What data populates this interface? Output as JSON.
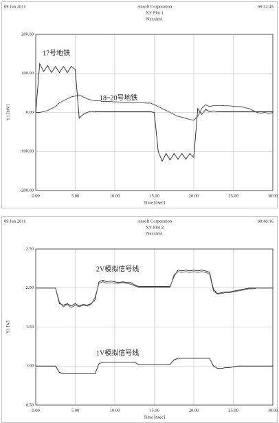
{
  "chart_data": [
    {
      "type": "line",
      "date": "09 Jun 2011",
      "company": "Ansoft Corporation",
      "title": "XY Plot 1",
      "subtitle": "Nexxim1",
      "time": "09:32:45",
      "xlabel": "Time [nsec]",
      "ylabel": "Y1 [mV]",
      "annotations": [
        "17号地铁",
        "18~20号地铁"
      ],
      "xlim": [
        0,
        30
      ],
      "xticks": [
        {
          "value": 0,
          "label": "0.00"
        },
        {
          "value": 5,
          "label": "5.00"
        },
        {
          "value": 10,
          "label": "10.00"
        },
        {
          "value": 15,
          "label": "15.00"
        },
        {
          "value": 20,
          "label": "20.00"
        },
        {
          "value": 25,
          "label": "25.00"
        },
        {
          "value": 30,
          "label": "30.00"
        }
      ],
      "ylim": [
        -200,
        200
      ],
      "yticks": [
        {
          "value": -200,
          "label": "-200.00"
        },
        {
          "value": -100,
          "label": "-100.00"
        },
        {
          "value": 0,
          "label": "0.00"
        },
        {
          "value": 100,
          "label": "100.00"
        },
        {
          "value": 200,
          "label": "200.00"
        }
      ],
      "grid": true,
      "x": [
        0,
        0.5,
        1,
        1.5,
        2,
        2.5,
        3,
        3.5,
        4,
        4.5,
        5,
        5.5,
        6,
        6.5,
        7,
        7.5,
        8,
        8.5,
        9,
        9.5,
        10,
        10.5,
        11,
        11.5,
        12,
        12.5,
        13,
        13.5,
        14,
        14.5,
        15,
        15.5,
        16,
        16.5,
        17,
        17.5,
        18,
        18.5,
        19,
        19.5,
        20,
        20.5,
        21,
        21.5,
        22,
        22.5,
        23,
        23.5,
        24,
        24.5,
        25,
        25.5,
        26,
        26.5,
        27,
        27.5,
        28,
        28.5,
        29,
        29.5,
        30
      ],
      "series": [
        {
          "color": "#222222",
          "values": [
            0,
            125,
            105,
            120,
            102,
            118,
            102,
            118,
            102,
            118,
            110,
            -15,
            -5,
            0,
            3,
            2,
            2,
            2,
            2,
            2,
            2,
            2,
            2,
            2,
            2,
            2,
            2,
            2,
            2,
            2,
            0,
            -100,
            -125,
            -105,
            -122,
            -105,
            -120,
            -105,
            -120,
            -105,
            -115,
            10,
            -5,
            8,
            2,
            4,
            2,
            2,
            2,
            2,
            2,
            2,
            2,
            2,
            2,
            2,
            2,
            2,
            2,
            2,
            2
          ]
        },
        {
          "color": "#444444",
          "values": [
            0,
            0,
            2,
            5,
            10,
            15,
            25,
            30,
            35,
            40,
            42,
            45,
            40,
            35,
            32,
            30,
            30,
            28,
            28,
            28,
            27,
            27,
            26,
            26,
            25,
            25,
            25,
            25,
            24,
            24,
            20,
            15,
            10,
            5,
            0,
            -5,
            -10,
            -12,
            -15,
            -18,
            -20,
            -10,
            10,
            20,
            15,
            18,
            18,
            18,
            17,
            17,
            16,
            15,
            15,
            12,
            10,
            5,
            0,
            -2,
            0,
            -3,
            0
          ]
        }
      ]
    },
    {
      "type": "line",
      "date": "09 Jun 2011",
      "company": "Ansoft Corporation",
      "title": "XY Plot 2",
      "subtitle": "Nexxim1",
      "time": "09:40:16",
      "xlabel": "Time [nsec]",
      "ylabel": "Y1 [V]",
      "annotations": [
        "2V模拟信号线",
        "1V模拟信号线"
      ],
      "xlim": [
        0,
        30
      ],
      "xticks": [
        {
          "value": 0,
          "label": "0.00"
        },
        {
          "value": 5,
          "label": "5.00"
        },
        {
          "value": 10,
          "label": "10.00"
        },
        {
          "value": 15,
          "label": "15.00"
        },
        {
          "value": 20,
          "label": "20.00"
        },
        {
          "value": 25,
          "label": "25.00"
        },
        {
          "value": 30,
          "label": "30.00"
        }
      ],
      "ylim": [
        0.5,
        2.5
      ],
      "yticks": [
        {
          "value": 0.5,
          "label": "0.50"
        },
        {
          "value": 1,
          "label": "1.00"
        },
        {
          "value": 1.5,
          "label": "1.50"
        },
        {
          "value": 2,
          "label": "2.00"
        },
        {
          "value": 2.5,
          "label": "2.50"
        }
      ],
      "grid": true,
      "x": [
        0,
        0.5,
        1,
        1.5,
        2,
        2.5,
        3,
        3.5,
        4,
        4.5,
        5,
        5.5,
        6,
        6.5,
        7,
        7.5,
        8,
        8.5,
        9,
        9.5,
        10,
        10.5,
        11,
        11.5,
        12,
        12.5,
        13,
        13.5,
        14,
        14.5,
        15,
        15.5,
        16,
        16.5,
        17,
        17.5,
        18,
        18.5,
        19,
        19.5,
        20,
        20.5,
        21,
        21.5,
        22,
        22.5,
        23,
        23.5,
        24,
        24.5,
        25,
        25.5,
        26,
        26.5,
        27,
        27.5,
        28,
        28.5,
        29,
        29.5,
        30
      ],
      "series": [
        {
          "color": "#222222",
          "values": [
            2,
            2,
            2,
            2,
            2,
            2,
            1.8,
            1.78,
            1.8,
            1.77,
            1.8,
            1.77,
            1.79,
            1.78,
            1.8,
            1.85,
            2.08,
            2.1,
            2.08,
            2.09,
            2.08,
            2.07,
            2.08,
            2.07,
            2.07,
            2.04,
            2.02,
            2.02,
            2.02,
            2.02,
            2.02,
            2.02,
            2.02,
            2.02,
            2.02,
            2.15,
            2.23,
            2.22,
            2.23,
            2.22,
            2.23,
            2.22,
            2.23,
            2.22,
            2.2,
            1.98,
            1.93,
            1.94,
            1.95,
            1.95,
            1.96,
            1.97,
            1.98,
            1.99,
            2,
            2,
            2,
            2,
            2,
            2,
            2
          ]
        },
        {
          "color": "#555555",
          "values": [
            2,
            2,
            2,
            2,
            2,
            2,
            1.82,
            1.76,
            1.79,
            1.75,
            1.78,
            1.76,
            1.78,
            1.77,
            1.79,
            1.88,
            2.06,
            2.08,
            2.06,
            2.07,
            2.06,
            2.06,
            2.07,
            2.06,
            2.05,
            2.03,
            2.01,
            2.01,
            2.01,
            2.01,
            2.01,
            2.01,
            2.01,
            2.01,
            2.01,
            2.17,
            2.21,
            2.2,
            2.21,
            2.2,
            2.21,
            2.2,
            2.21,
            2.2,
            2.18,
            1.96,
            1.92,
            1.93,
            1.94,
            1.94,
            1.95,
            1.96,
            1.97,
            1.98,
            1.99,
            1.99,
            2,
            2,
            2,
            2,
            2
          ]
        },
        {
          "color": "#222222",
          "values": [
            1,
            1,
            1,
            1,
            1,
            1,
            0.92,
            0.9,
            0.9,
            0.9,
            0.9,
            0.9,
            0.9,
            0.9,
            0.9,
            0.9,
            1.03,
            1.05,
            1.05,
            1.05,
            1.05,
            1.05,
            1.05,
            1.05,
            1.05,
            1.05,
            1.02,
            1.02,
            1.02,
            1.02,
            1.02,
            1.02,
            1.02,
            1.02,
            1.02,
            1.08,
            1.1,
            1.1,
            1.1,
            1.1,
            1.1,
            1.1,
            1.1,
            1.1,
            1.1,
            1,
            0.97,
            0.97,
            0.98,
            0.98,
            0.99,
            1,
            1,
            1,
            1,
            1,
            1,
            1,
            1,
            1,
            1
          ]
        }
      ]
    }
  ]
}
